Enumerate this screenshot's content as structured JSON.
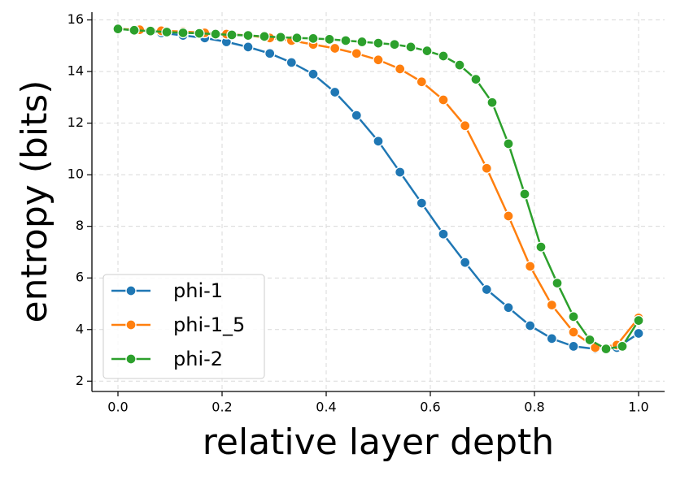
{
  "chart_data": {
    "type": "line",
    "xlabel": "relative layer depth",
    "ylabel": "entropy (bits)",
    "xlim": [
      -0.05,
      1.05
    ],
    "ylim": [
      1.6,
      16.3
    ],
    "xticks": [
      {
        "value": 0,
        "label": "0.0"
      },
      {
        "value": 0.2,
        "label": "0.2"
      },
      {
        "value": 0.4,
        "label": "0.4"
      },
      {
        "value": 0.6,
        "label": "0.6"
      },
      {
        "value": 0.8,
        "label": "0.8"
      },
      {
        "value": 1,
        "label": "1.0"
      }
    ],
    "yticks": [
      2,
      4,
      6,
      8,
      10,
      12,
      14,
      16
    ],
    "grid": true,
    "legend": "lower left",
    "series": [
      {
        "name": "phi-1",
        "color": "#1f77b4",
        "x": [
          0,
          0.0417,
          0.0833,
          0.125,
          0.1667,
          0.2083,
          0.25,
          0.2917,
          0.3333,
          0.375,
          0.4167,
          0.4583,
          0.5,
          0.5417,
          0.5833,
          0.625,
          0.6667,
          0.7083,
          0.75,
          0.7917,
          0.8333,
          0.875,
          0.9167,
          0.9583,
          1
        ],
        "values": [
          15.65,
          15.6,
          15.5,
          15.4,
          15.3,
          15.15,
          14.95,
          14.7,
          14.35,
          13.9,
          13.2,
          12.3,
          11.3,
          10.1,
          8.9,
          7.7,
          6.6,
          5.55,
          4.85,
          4.15,
          3.65,
          3.35,
          3.25,
          3.3,
          3.85
        ]
      },
      {
        "name": "phi-1_5",
        "color": "#ff7f0e",
        "x": [
          0,
          0.0417,
          0.0833,
          0.125,
          0.1667,
          0.2083,
          0.25,
          0.2917,
          0.3333,
          0.375,
          0.4167,
          0.4583,
          0.5,
          0.5417,
          0.5833,
          0.625,
          0.6667,
          0.7083,
          0.75,
          0.7917,
          0.8333,
          0.875,
          0.9167,
          0.9583,
          1
        ],
        "values": [
          15.65,
          15.62,
          15.58,
          15.55,
          15.5,
          15.45,
          15.4,
          15.3,
          15.2,
          15.05,
          14.9,
          14.7,
          14.45,
          14.1,
          13.6,
          12.9,
          11.9,
          10.25,
          8.4,
          6.45,
          4.95,
          3.9,
          3.3,
          3.4,
          4.45
        ]
      },
      {
        "name": "phi-2",
        "color": "#2ca02c",
        "x": [
          0,
          0.03125,
          0.0625,
          0.09375,
          0.125,
          0.15625,
          0.1875,
          0.21875,
          0.25,
          0.28125,
          0.3125,
          0.34375,
          0.375,
          0.40625,
          0.4375,
          0.46875,
          0.5,
          0.53125,
          0.5625,
          0.59375,
          0.625,
          0.65625,
          0.6875,
          0.71875,
          0.75,
          0.78125,
          0.8125,
          0.84375,
          0.875,
          0.90625,
          0.9375,
          0.96875,
          1
        ],
        "values": [
          15.65,
          15.6,
          15.57,
          15.53,
          15.5,
          15.48,
          15.45,
          15.42,
          15.4,
          15.36,
          15.33,
          15.3,
          15.28,
          15.25,
          15.2,
          15.15,
          15.1,
          15.05,
          14.95,
          14.8,
          14.6,
          14.25,
          13.7,
          12.8,
          11.2,
          9.25,
          7.2,
          5.8,
          4.5,
          3.6,
          3.25,
          3.35,
          4.35
        ]
      }
    ]
  }
}
